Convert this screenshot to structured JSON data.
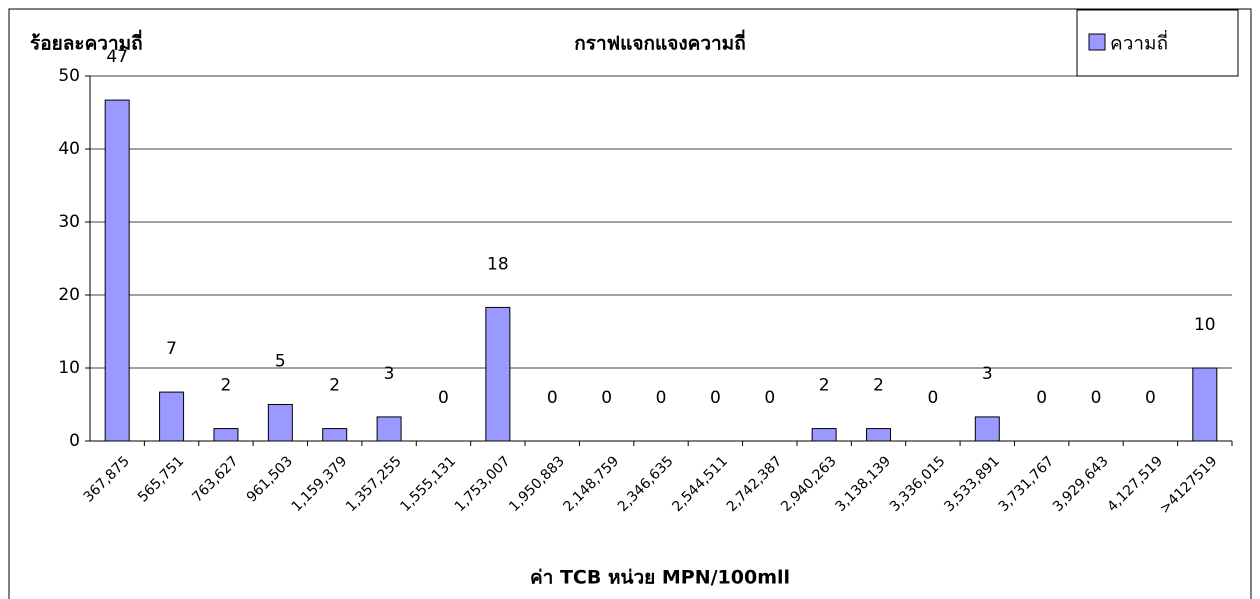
{
  "chart_data": {
    "type": "bar",
    "title": "กราฟแจกแจงความถี่",
    "y_label": "ร้อยละความถี่",
    "x_label": "ค่า TCB หน่วย MPN/100mll",
    "categories": [
      "367,875",
      "565,751",
      "763,627",
      "961,503",
      "1,159,379",
      "1,357,255",
      "1,555,131",
      "1,753,007",
      "1,950,883",
      "2,148,759",
      "2,346,635",
      "2,544,511",
      "2,742,387",
      "2,940,263",
      "3,138,139",
      "3,336,015",
      "3,533,891",
      "3,731,767",
      "3,929,643",
      "4,127,519",
      ">4127519"
    ],
    "series": [
      {
        "name": "ความถี่",
        "color": "#9999ff",
        "values": [
          46.7,
          6.7,
          1.7,
          5.0,
          1.7,
          3.3,
          0,
          18.3,
          0,
          0,
          0,
          0,
          0,
          1.7,
          1.7,
          0,
          3.3,
          0,
          0,
          0,
          10.0
        ],
        "value_labels": [
          "47",
          "7",
          "2",
          "5",
          "2",
          "3",
          "0",
          "18",
          "0",
          "0",
          "0",
          "0",
          "0",
          "2",
          "2",
          "0",
          "3",
          "0",
          "0",
          "0",
          "10"
        ]
      }
    ],
    "ylim": [
      0,
      50
    ],
    "yticks": [
      0,
      10,
      20,
      30,
      40,
      50
    ],
    "grid": true,
    "legend": "top-right"
  }
}
